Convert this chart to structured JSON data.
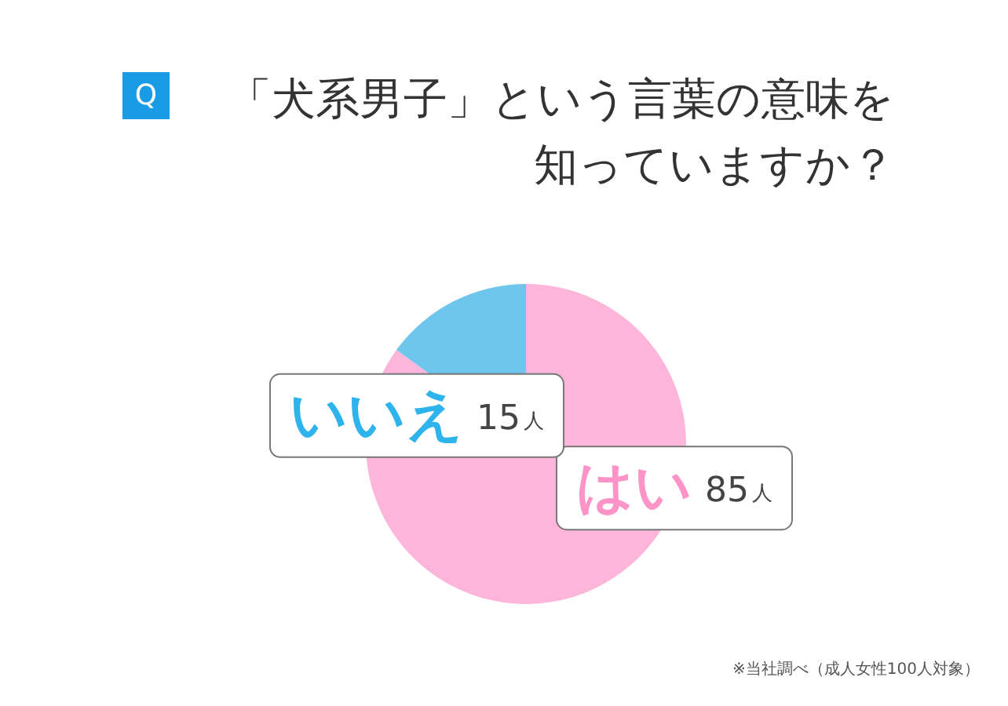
{
  "chart_data": {
    "type": "pie",
    "title": "「犬系男子」という言葉の意味を知っていますか？",
    "categories": [
      "はい",
      "いいえ"
    ],
    "values": [
      85,
      15
    ],
    "value_labels": [
      "85人",
      "15人"
    ],
    "colors": [
      "#fdb6d9",
      "#6ec6ec"
    ],
    "legend": false,
    "annotations": [
      "Q",
      "※当社調べ（成人女性100人対象）"
    ]
  }
}
